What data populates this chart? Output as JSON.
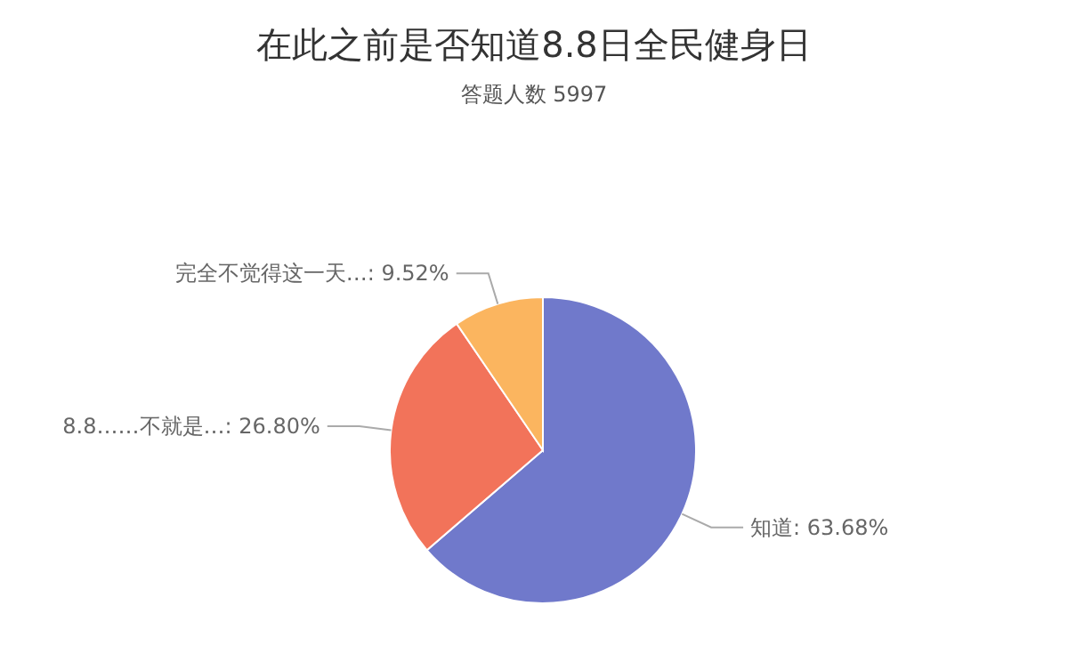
{
  "chart_data": {
    "type": "pie",
    "title": "在此之前是否知道8.8日全民健身日",
    "subtitle": "答题人数 5997",
    "categories": [
      "知道",
      "8.8……不就是…",
      "完全不觉得这一天…"
    ],
    "values": [
      63.68,
      26.8,
      9.52
    ],
    "value_labels": [
      "63.68%",
      "26.80%",
      "9.52%"
    ],
    "colors": [
      "#7079cb",
      "#f2735a",
      "#fbb55f"
    ]
  }
}
